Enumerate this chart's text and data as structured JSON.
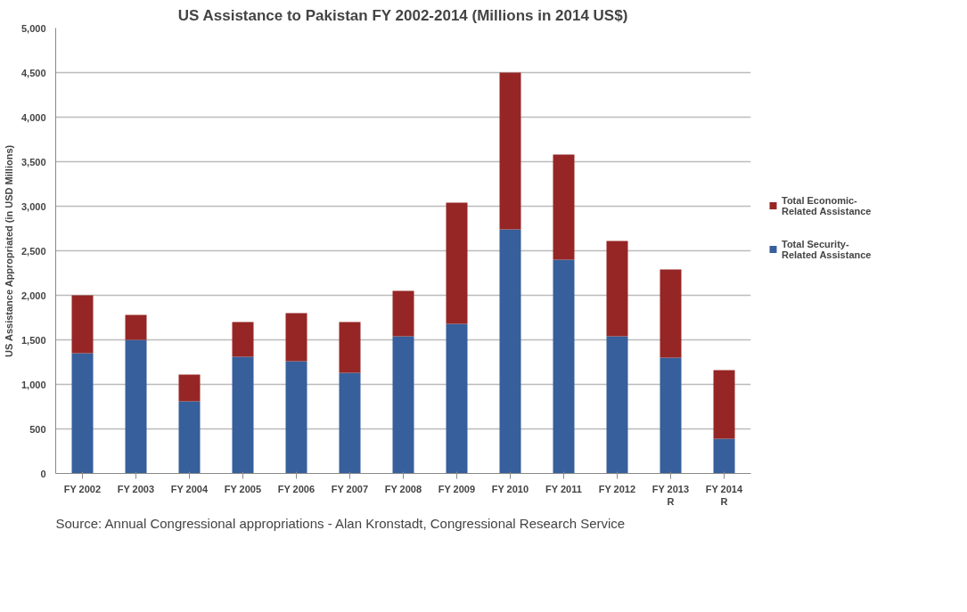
{
  "chart_data": {
    "type": "bar",
    "title": "US Assistance to Pakistan FY 2002-2014 (Millions in 2014 US$)",
    "ylabel": "US Assistance Appropriated (in USD Millions)",
    "categories": [
      "FY 2002",
      "FY 2003",
      "FY 2004",
      "FY 2005",
      "FY 2006",
      "FY 2007",
      "FY 2008",
      "FY 2009",
      "FY 2010",
      "FY 2011",
      "FY 2012",
      "FY 2013\nR",
      "FY 2014\nR"
    ],
    "stacked": true,
    "series": [
      {
        "name": "Total Security-Related Assistance",
        "color": "#365f9b",
        "values": [
          1350,
          1500,
          810,
          1310,
          1260,
          1130,
          1540,
          1680,
          2740,
          2400,
          1540,
          1300,
          390
        ]
      },
      {
        "name": "Total Economic-Related Assistance",
        "color": "#962625",
        "values": [
          650,
          280,
          300,
          390,
          540,
          570,
          510,
          1360,
          1760,
          1180,
          1070,
          990,
          770
        ]
      }
    ],
    "ylim": [
      0,
      5000
    ],
    "yticks": [
      0,
      500,
      {
        "value": 1000,
        "label": "1,000"
      },
      {
        "value": 1500,
        "label": "1,500"
      },
      {
        "value": 2000,
        "label": "2,000"
      },
      {
        "value": 2500,
        "label": "2,500"
      },
      {
        "value": 3000,
        "label": "3,000"
      },
      {
        "value": 3500,
        "label": "3,500"
      },
      {
        "value": 4000,
        "label": "4,000"
      },
      {
        "value": 4500,
        "label": "4,500"
      },
      {
        "value": 5000,
        "label": "5,000"
      }
    ],
    "grid": "y",
    "legend": "right",
    "annotations": [
      "Source: Annual Congressional appropriations - Alan Kronstadt, Congressional Research Service"
    ]
  }
}
